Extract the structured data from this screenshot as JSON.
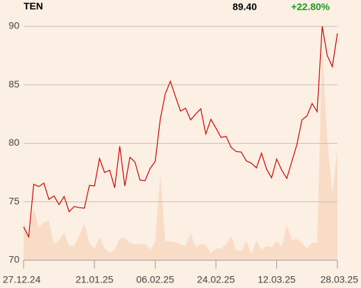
{
  "header": {
    "title": "TEN",
    "last_value": "89.40",
    "change": "+22.80%"
  },
  "chart_data": {
    "type": "line",
    "x": [
      0,
      1,
      2,
      3,
      4,
      5,
      6,
      7,
      8,
      9,
      10,
      11,
      12,
      13,
      14,
      15,
      16,
      17,
      18,
      19,
      20,
      21,
      22,
      23,
      24,
      25,
      26,
      27,
      28,
      29,
      30,
      31,
      32,
      33,
      34,
      35,
      36,
      37,
      38,
      39,
      40,
      41,
      42,
      43,
      44,
      45,
      46,
      47,
      48,
      49,
      50,
      51,
      52,
      53,
      54,
      55,
      56,
      57,
      58,
      59,
      60,
      61,
      62
    ],
    "series": [
      {
        "color": "#cc0000",
        "values": [
          72.85,
          72.0,
          76.5,
          76.3,
          76.6,
          75.2,
          75.5,
          74.75,
          75.45,
          74.15,
          74.6,
          74.5,
          74.45,
          76.4,
          76.35,
          78.7,
          77.5,
          77.7,
          76.2,
          79.75,
          76.35,
          78.8,
          78.4,
          76.85,
          76.8,
          77.85,
          78.45,
          82.05,
          84.25,
          85.3,
          84.0,
          82.75,
          83.0,
          82.0,
          82.5,
          82.95,
          80.8,
          82.05,
          81.3,
          80.5,
          80.6,
          79.65,
          79.3,
          79.25,
          78.5,
          78.3,
          77.9,
          79.15,
          77.8,
          77.05,
          78.65,
          77.7,
          77.0,
          78.45,
          79.9,
          82.0,
          82.35,
          83.4,
          82.7,
          90.0,
          87.5,
          86.55,
          89.4
        ]
      },
      {
        "color": "#f9dcc6",
        "values": [
          73.26,
          72.08,
          74.45,
          72.79,
          73.26,
          73.38,
          71.36,
          71.72,
          72.37,
          71.19,
          71.25,
          72.08,
          73.15,
          71.48,
          71.0,
          71.96,
          71.0,
          70.65,
          70.89,
          71.84,
          71.9,
          71.48,
          71.36,
          71.36,
          71.42,
          70.89,
          71.6,
          77.3,
          71.66,
          71.6,
          71.54,
          71.36,
          71.19,
          72.31,
          71.13,
          71.36,
          71.31,
          70.59,
          71.0,
          71.0,
          71.36,
          72.08,
          70.89,
          70.77,
          71.66,
          70.53,
          71.66,
          70.89,
          71.19,
          71.13,
          71.66,
          71.13,
          73.03,
          71.72,
          71.84,
          71.48,
          71.0,
          71.48,
          71.48,
          88.1,
          80.39,
          75.64,
          79.5
        ]
      }
    ],
    "xlim": [
      0,
      62
    ],
    "xticks": [
      {
        "value": 0,
        "label": "27.12.24"
      },
      {
        "value": 14,
        "label": "21.01.25"
      },
      {
        "value": 26,
        "label": "06.02.25"
      },
      {
        "value": 38,
        "label": "24.02.25"
      },
      {
        "value": 50,
        "label": "12.03.25"
      },
      {
        "value": 62,
        "label": "28.03.25"
      }
    ],
    "ylim": [
      70,
      90
    ],
    "yticks": [
      70,
      75,
      80,
      85,
      90
    ],
    "grid": true,
    "change_color": "#1a9a1a"
  }
}
